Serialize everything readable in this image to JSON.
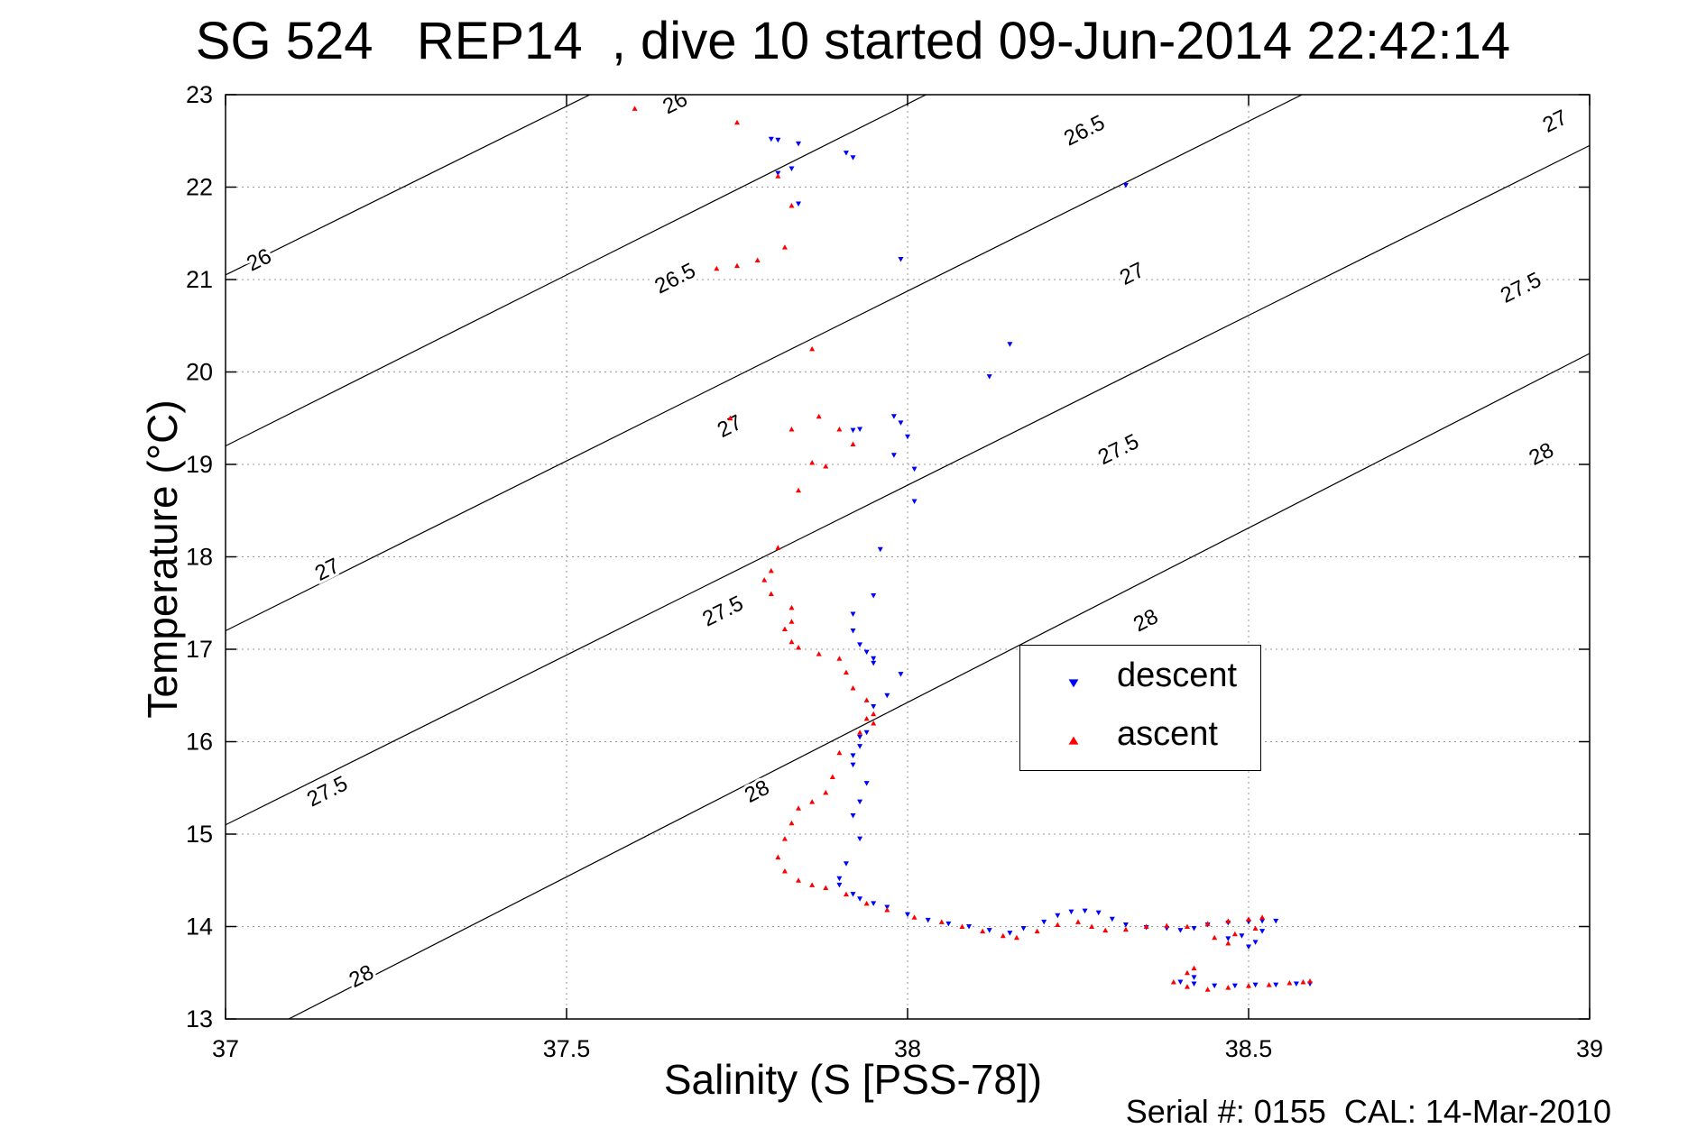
{
  "title": "SG 524   REP14  , dive 10 started 09-Jun-2014 22:42:14",
  "xlabel": "Salinity (S [PSS-78])",
  "ylabel": "Temperature (°C)",
  "footer": "Serial #: 0155  CAL: 14-Mar-2010",
  "legend": {
    "descent": "descent",
    "ascent": "ascent"
  },
  "colors": {
    "descent": "#0000ff",
    "ascent": "#ff0000",
    "contour": "#000000",
    "grid": "#9a9a9a"
  },
  "chart_data": {
    "type": "scatter",
    "xlabel": "Salinity (S [PSS-78])",
    "ylabel": "Temperature (°C)",
    "xlim": [
      37,
      39
    ],
    "ylim": [
      13,
      23
    ],
    "xticks": [
      "37",
      "37.5",
      "38",
      "38.5",
      "39"
    ],
    "yticks": [
      "13",
      "14",
      "15",
      "16",
      "17",
      "18",
      "19",
      "20",
      "21",
      "22",
      "23"
    ],
    "grid": true,
    "legend_position": "lower-right-center",
    "isopycnals": [
      {
        "label": "26",
        "points": [
          [
            37,
            21.05
          ],
          [
            39,
            28.35
          ]
        ],
        "labels_at": [
          [
            37.05,
            21.2
          ],
          [
            37.66,
            22.9
          ]
        ]
      },
      {
        "label": "26.5",
        "points": [
          [
            37,
            19.2
          ],
          [
            39,
            26.6
          ]
        ],
        "labels_at": [
          [
            37.66,
            21.0
          ],
          [
            38.26,
            22.6
          ]
        ]
      },
      {
        "label": "27",
        "points": [
          [
            37,
            17.2
          ],
          [
            39,
            24.55
          ]
        ],
        "labels_at": [
          [
            37.15,
            17.85
          ],
          [
            37.74,
            19.4
          ],
          [
            38.33,
            21.05
          ],
          [
            38.95,
            22.7
          ]
        ]
      },
      {
        "label": "27.5",
        "points": [
          [
            37,
            15.1
          ],
          [
            39,
            22.45
          ]
        ],
        "labels_at": [
          [
            37.15,
            15.45
          ],
          [
            37.73,
            17.4
          ],
          [
            38.31,
            19.15
          ],
          [
            38.9,
            20.9
          ]
        ]
      },
      {
        "label": "28",
        "points": [
          [
            37,
            12.65
          ],
          [
            39,
            20.2
          ]
        ],
        "labels_at": [
          [
            37.2,
            13.45
          ],
          [
            37.78,
            15.45
          ],
          [
            38.35,
            17.3
          ],
          [
            38.93,
            19.1
          ]
        ]
      }
    ],
    "series": [
      {
        "name": "descent",
        "marker": "triangle-down",
        "points": [
          [
            37.8,
            22.52
          ],
          [
            37.81,
            22.51
          ],
          [
            37.84,
            22.47
          ],
          [
            37.83,
            22.2
          ],
          [
            37.81,
            22.15
          ],
          [
            37.91,
            22.37
          ],
          [
            37.92,
            22.32
          ],
          [
            38.32,
            22.02
          ],
          [
            37.84,
            21.82
          ],
          [
            37.99,
            21.22
          ],
          [
            38.15,
            20.3
          ],
          [
            38.12,
            19.95
          ],
          [
            37.92,
            19.37
          ],
          [
            37.93,
            19.38
          ],
          [
            37.98,
            19.52
          ],
          [
            37.99,
            19.45
          ],
          [
            38.0,
            19.3
          ],
          [
            37.98,
            19.1
          ],
          [
            38.01,
            18.95
          ],
          [
            38.01,
            18.6
          ],
          [
            37.96,
            18.08
          ],
          [
            37.95,
            17.58
          ],
          [
            37.92,
            17.38
          ],
          [
            37.92,
            17.2
          ],
          [
            37.93,
            17.05
          ],
          [
            37.94,
            16.97
          ],
          [
            37.95,
            16.9
          ],
          [
            37.95,
            16.85
          ],
          [
            37.99,
            16.73
          ],
          [
            37.97,
            16.5
          ],
          [
            37.95,
            16.38
          ],
          [
            37.94,
            16.1
          ],
          [
            37.93,
            16.05
          ],
          [
            37.93,
            15.95
          ],
          [
            37.92,
            15.85
          ],
          [
            37.92,
            15.75
          ],
          [
            37.94,
            15.55
          ],
          [
            37.93,
            15.35
          ],
          [
            37.92,
            15.2
          ],
          [
            37.93,
            14.95
          ],
          [
            37.91,
            14.68
          ],
          [
            37.9,
            14.52
          ],
          [
            37.9,
            14.45
          ],
          [
            37.92,
            14.35
          ],
          [
            37.93,
            14.3
          ],
          [
            37.95,
            14.25
          ],
          [
            37.97,
            14.21
          ],
          [
            38.0,
            14.13
          ],
          [
            38.03,
            14.07
          ],
          [
            38.06,
            14.03
          ],
          [
            38.09,
            14.0
          ],
          [
            38.12,
            13.96
          ],
          [
            38.15,
            13.93
          ],
          [
            38.17,
            13.98
          ],
          [
            38.2,
            14.05
          ],
          [
            38.22,
            14.12
          ],
          [
            38.24,
            14.16
          ],
          [
            38.26,
            14.17
          ],
          [
            38.28,
            14.15
          ],
          [
            38.3,
            14.08
          ],
          [
            38.32,
            14.02
          ],
          [
            38.35,
            13.99
          ],
          [
            38.38,
            13.98
          ],
          [
            38.4,
            13.96
          ],
          [
            38.42,
            13.98
          ],
          [
            38.44,
            14.02
          ],
          [
            38.47,
            14.04
          ],
          [
            38.5,
            14.05
          ],
          [
            38.52,
            14.06
          ],
          [
            38.54,
            14.06
          ],
          [
            38.52,
            13.95
          ],
          [
            38.49,
            13.9
          ],
          [
            38.47,
            13.87
          ],
          [
            38.51,
            13.83
          ],
          [
            38.5,
            13.78
          ],
          [
            38.42,
            13.45
          ],
          [
            38.4,
            13.4
          ],
          [
            38.42,
            13.38
          ],
          [
            38.45,
            13.36
          ],
          [
            38.48,
            13.36
          ],
          [
            38.51,
            13.37
          ],
          [
            38.54,
            13.37
          ],
          [
            38.57,
            13.38
          ],
          [
            38.59,
            13.38
          ]
        ]
      },
      {
        "name": "ascent",
        "marker": "triangle-up",
        "points": [
          [
            37.6,
            22.85
          ],
          [
            37.75,
            22.7
          ],
          [
            37.81,
            22.12
          ],
          [
            37.83,
            21.8
          ],
          [
            37.82,
            21.35
          ],
          [
            37.78,
            21.21
          ],
          [
            37.75,
            21.15
          ],
          [
            37.72,
            21.12
          ],
          [
            37.86,
            20.25
          ],
          [
            37.74,
            19.5
          ],
          [
            37.83,
            19.38
          ],
          [
            37.87,
            19.52
          ],
          [
            37.9,
            19.38
          ],
          [
            37.92,
            19.22
          ],
          [
            37.86,
            19.02
          ],
          [
            37.88,
            18.98
          ],
          [
            37.84,
            18.72
          ],
          [
            37.81,
            18.1
          ],
          [
            37.8,
            17.85
          ],
          [
            37.79,
            17.75
          ],
          [
            37.8,
            17.6
          ],
          [
            37.83,
            17.45
          ],
          [
            37.83,
            17.3
          ],
          [
            37.82,
            17.22
          ],
          [
            37.83,
            17.08
          ],
          [
            37.84,
            17.02
          ],
          [
            37.87,
            16.95
          ],
          [
            37.9,
            16.9
          ],
          [
            37.91,
            16.75
          ],
          [
            37.92,
            16.58
          ],
          [
            37.94,
            16.45
          ],
          [
            37.95,
            16.3
          ],
          [
            37.94,
            16.25
          ],
          [
            37.95,
            16.2
          ],
          [
            37.93,
            16.1
          ],
          [
            37.9,
            15.88
          ],
          [
            37.89,
            15.62
          ],
          [
            37.88,
            15.45
          ],
          [
            37.86,
            15.35
          ],
          [
            37.84,
            15.28
          ],
          [
            37.83,
            15.12
          ],
          [
            37.82,
            14.95
          ],
          [
            37.81,
            14.75
          ],
          [
            37.82,
            14.6
          ],
          [
            37.84,
            14.5
          ],
          [
            37.86,
            14.45
          ],
          [
            37.88,
            14.42
          ],
          [
            37.91,
            14.35
          ],
          [
            37.94,
            14.25
          ],
          [
            37.97,
            14.18
          ],
          [
            38.01,
            14.1
          ],
          [
            38.05,
            14.05
          ],
          [
            38.08,
            14.0
          ],
          [
            38.11,
            13.95
          ],
          [
            38.14,
            13.9
          ],
          [
            38.16,
            13.88
          ],
          [
            38.19,
            13.95
          ],
          [
            38.22,
            14.02
          ],
          [
            38.25,
            14.05
          ],
          [
            38.27,
            14.0
          ],
          [
            38.29,
            13.96
          ],
          [
            38.32,
            13.97
          ],
          [
            38.35,
            14.0
          ],
          [
            38.38,
            14.01
          ],
          [
            38.41,
            14.0
          ],
          [
            38.44,
            14.03
          ],
          [
            38.47,
            14.06
          ],
          [
            38.5,
            14.08
          ],
          [
            38.52,
            14.1
          ],
          [
            38.51,
            13.98
          ],
          [
            38.48,
            13.92
          ],
          [
            38.47,
            13.82
          ],
          [
            38.45,
            13.88
          ],
          [
            38.42,
            13.55
          ],
          [
            38.41,
            13.5
          ],
          [
            38.39,
            13.4
          ],
          [
            38.41,
            13.35
          ],
          [
            38.44,
            13.32
          ],
          [
            38.47,
            13.34
          ],
          [
            38.5,
            13.36
          ],
          [
            38.53,
            13.37
          ],
          [
            38.56,
            13.39
          ],
          [
            38.58,
            13.4
          ],
          [
            38.59,
            13.41
          ]
        ]
      }
    ]
  }
}
